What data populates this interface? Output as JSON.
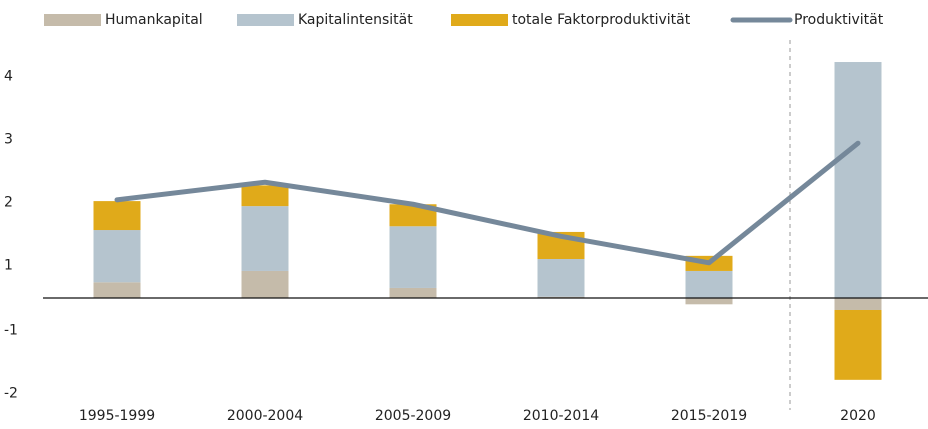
{
  "chart_data": {
    "type": "bar",
    "categories": [
      "1995-1999",
      "2000-2004",
      "2005-2009",
      "2010-2014",
      "2015-2019",
      "2020"
    ],
    "series": [
      {
        "name": "Humankapital",
        "color": "#c5bbaa",
        "values": [
          0.25,
          0.43,
          0.16,
          0.02,
          -0.1,
          -0.19
        ]
      },
      {
        "name": "Kapitalintensität",
        "color": "#b5c4ce",
        "values": [
          0.83,
          1.03,
          0.98,
          0.6,
          0.43,
          3.75
        ]
      },
      {
        "name": "totale Faktorproduktivität",
        "color": "#e0aa1a",
        "values": [
          0.46,
          0.33,
          0.35,
          0.43,
          0.24,
          -1.11
        ]
      },
      {
        "name": "Produktivität",
        "type": "line",
        "color": "#75889a",
        "values": [
          1.56,
          1.84,
          1.49,
          0.98,
          0.56,
          2.46
        ]
      }
    ],
    "ylim": [
      -1.7,
      4.1
    ],
    "yticks": [
      4,
      3,
      2,
      1,
      -1,
      -2
    ],
    "legend": "top"
  }
}
